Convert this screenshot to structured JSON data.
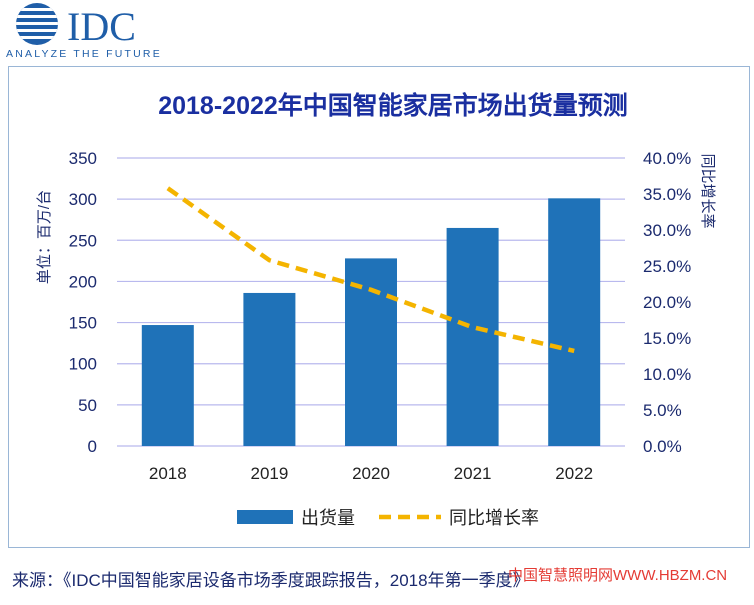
{
  "logo": {
    "name": "IDC",
    "tagline": "ANALYZE THE FUTURE",
    "color": "#1f5ea8"
  },
  "chart_data": {
    "type": "bar",
    "title": "2018-2022年中国智能家居市场出货量预测",
    "categories": [
      "2018",
      "2019",
      "2020",
      "2021",
      "2022"
    ],
    "series": [
      {
        "name": "出货量",
        "kind": "bar",
        "axis": "left",
        "color": "#1f72b8",
        "values": [
          147,
          186,
          228,
          265,
          301
        ]
      },
      {
        "name": "同比增长率",
        "kind": "line",
        "style": "dashed",
        "axis": "right",
        "color": "#f4b400",
        "values": [
          35.8,
          25.8,
          21.7,
          16.5,
          13.2
        ]
      }
    ],
    "ylabel": "单位：百万/台",
    "ylabel_right": "同比增长率",
    "ylim": [
      0,
      350
    ],
    "yticks": [
      0,
      50,
      100,
      150,
      200,
      250,
      300,
      350
    ],
    "ylim_right": [
      0,
      40
    ],
    "yticks_right": [
      "0.0%",
      "5.0%",
      "10.0%",
      "15.0%",
      "20.0%",
      "25.0%",
      "30.0%",
      "35.0%",
      "40.0%"
    ],
    "grid": true,
    "legend": "bottom-center"
  },
  "colors": {
    "title": "#1a2fa0",
    "axis_text": "#1b2a6e",
    "grid": "#b9b9ee",
    "frame": "#9ab6d6"
  },
  "source": "来源：《IDC中国智能家居设备市场季度跟踪报告，2018年第一季度》",
  "watermark": "中国智慧照明网WWW.HBZM.CN"
}
